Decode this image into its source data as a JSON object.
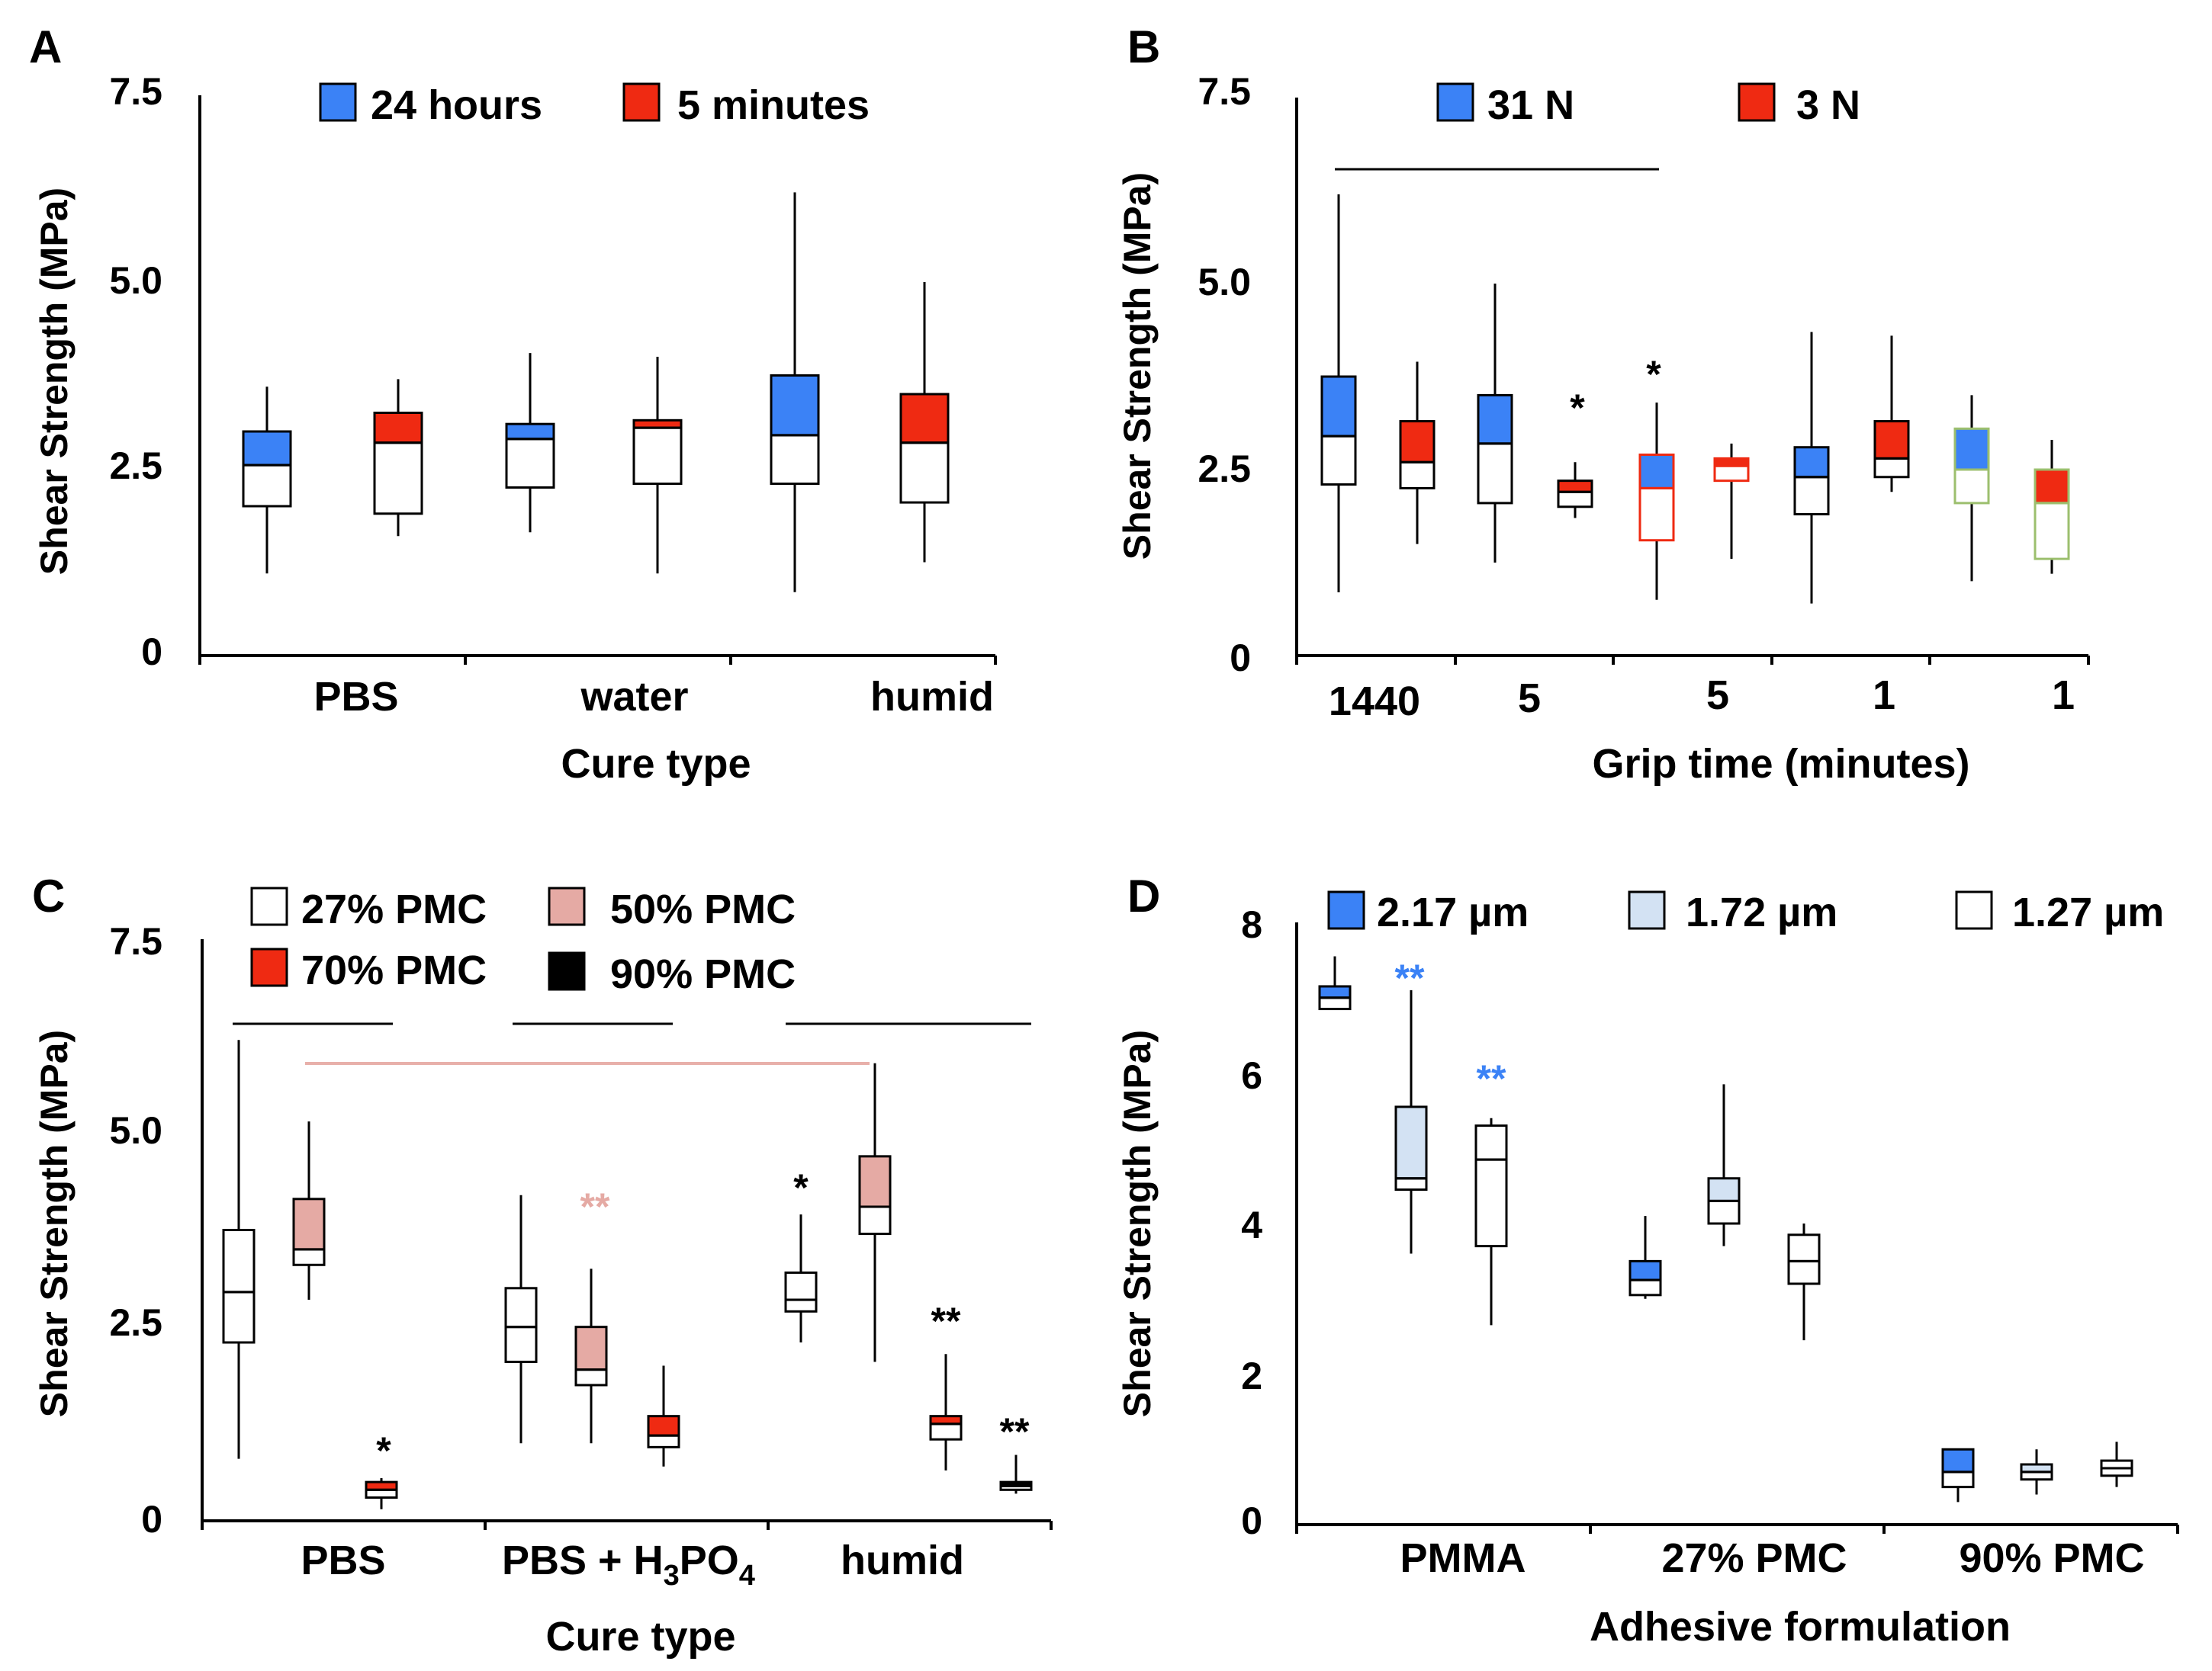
{
  "chart_data": [
    {
      "panel": "A",
      "type": "box",
      "xlabel": "Cure type",
      "ylabel": "Shear Strength (MPa)",
      "ylim": [
        0,
        7.5
      ],
      "yticks": [
        "0",
        "2.5",
        "5.0",
        "7.5"
      ],
      "categories": [
        "PBS",
        "water",
        "humid"
      ],
      "legend": [
        {
          "label": "24 hours",
          "color": "#3b82f6"
        },
        {
          "label": "5 minutes",
          "color": "#ef2a12"
        }
      ],
      "boxes": [
        {
          "category": "PBS",
          "series": "24 hours",
          "min": 1.1,
          "q1": 2.0,
          "median": 2.55,
          "q3": 3.0,
          "max": 3.6
        },
        {
          "category": "PBS",
          "series": "5 minutes",
          "min": 1.6,
          "q1": 1.9,
          "median": 2.85,
          "q3": 3.25,
          "max": 3.7
        },
        {
          "category": "water",
          "series": "24 hours",
          "min": 1.65,
          "q1": 2.25,
          "median": 2.9,
          "q3": 3.1,
          "max": 4.05
        },
        {
          "category": "water",
          "series": "5 minutes",
          "min": 1.1,
          "q1": 2.3,
          "median": 3.05,
          "q3": 3.15,
          "max": 4.0
        },
        {
          "category": "humid",
          "series": "24 hours",
          "min": 0.85,
          "q1": 2.3,
          "median": 2.95,
          "q3": 3.75,
          "max": 6.2
        },
        {
          "category": "humid",
          "series": "5 minutes",
          "min": 1.25,
          "q1": 2.05,
          "median": 2.85,
          "q3": 3.5,
          "max": 5.0
        }
      ]
    },
    {
      "panel": "B",
      "type": "box",
      "xlabel": "Grip time (minutes)",
      "ylabel": "Shear Strength (MPa)",
      "ylim": [
        0,
        7.5
      ],
      "yticks": [
        "0",
        "2.5",
        "5.0",
        "7.5"
      ],
      "tick_labels": [
        "1440",
        "5",
        "5",
        "1",
        "1"
      ],
      "legend": [
        {
          "label": "31 N",
          "color": "#3b82f6"
        },
        {
          "label": "3 N",
          "color": "#ef2a12"
        }
      ],
      "annotations": [
        "*",
        "*"
      ],
      "boxes": [
        {
          "series": "31 N",
          "min": 0.85,
          "q1": 2.3,
          "median": 2.95,
          "q3": 3.75,
          "max": 6.2
        },
        {
          "series": "3 N",
          "min": 1.5,
          "q1": 2.25,
          "median": 2.6,
          "q3": 3.15,
          "max": 3.95
        },
        {
          "series": "31 N",
          "min": 1.25,
          "q1": 2.05,
          "median": 2.85,
          "q3": 3.5,
          "max": 5.0
        },
        {
          "series": "3 N",
          "min": 1.85,
          "q1": 2.0,
          "median": 2.2,
          "q3": 2.35,
          "max": 2.6
        },
        {
          "series": "31 N",
          "min": 0.75,
          "q1": 1.55,
          "median": 2.25,
          "q3": 2.7,
          "max": 3.4
        },
        {
          "series": "3 N",
          "min": 1.3,
          "q1": 2.35,
          "median": 2.55,
          "q3": 2.65,
          "max": 2.85
        },
        {
          "series": "31 N",
          "min": 0.7,
          "q1": 1.9,
          "median": 2.4,
          "q3": 2.8,
          "max": 4.35
        },
        {
          "series": "3 N",
          "min": 2.2,
          "q1": 2.4,
          "median": 2.65,
          "q3": 3.15,
          "max": 4.3
        },
        {
          "series": "31 N",
          "min": 1.0,
          "q1": 2.05,
          "median": 2.5,
          "q3": 3.05,
          "max": 3.5
        },
        {
          "series": "3 N",
          "min": 1.1,
          "q1": 1.3,
          "median": 2.05,
          "q3": 2.5,
          "max": 2.9
        }
      ]
    },
    {
      "panel": "C",
      "type": "box",
      "xlabel": "Cure type",
      "ylabel": "Shear Strength (MPa)",
      "ylim": [
        0,
        7.5
      ],
      "yticks": [
        "0",
        "2.5",
        "5.0",
        "7.5"
      ],
      "categories": [
        "PBS",
        "PBS + H",
        "humid"
      ],
      "category_suffix": {
        "sub1": "3",
        "mid": "PO",
        "sub2": "4"
      },
      "legend": [
        {
          "label": "27% PMC",
          "color": "#ffffff"
        },
        {
          "label": "50% PMC",
          "color": "#e5aaa4"
        },
        {
          "label": "70% PMC",
          "color": "#ef2a12"
        },
        {
          "label": "90% PMC",
          "color": "#000000"
        }
      ],
      "annotations": [
        "*",
        "**",
        "*",
        "**",
        "**"
      ],
      "boxes": [
        {
          "category": "PBS",
          "series": "27% PMC",
          "min": 0.8,
          "q1": 2.3,
          "median": 2.95,
          "q3": 3.75,
          "max": 6.2
        },
        {
          "category": "PBS",
          "series": "50% PMC",
          "min": 2.85,
          "q1": 3.3,
          "median": 3.5,
          "q3": 4.15,
          "max": 5.15
        },
        {
          "category": "PBS",
          "series": "70% PMC",
          "min": 0.15,
          "q1": 0.3,
          "median": 0.4,
          "q3": 0.5,
          "max": 0.55
        },
        {
          "category": "PBS + H3PO4",
          "series": "27% PMC",
          "min": 1.0,
          "q1": 2.05,
          "median": 2.5,
          "q3": 3.0,
          "max": 4.2
        },
        {
          "category": "PBS + H3PO4",
          "series": "50% PMC",
          "min": 1.0,
          "q1": 1.75,
          "median": 1.95,
          "q3": 2.5,
          "max": 3.25
        },
        {
          "category": "PBS + H3PO4",
          "series": "70% PMC",
          "min": 0.7,
          "q1": 0.95,
          "median": 1.1,
          "q3": 1.35,
          "max": 2.0
        },
        {
          "category": "humid",
          "series": "27% PMC",
          "min": 2.3,
          "q1": 2.7,
          "median": 2.85,
          "q3": 3.2,
          "max": 3.95
        },
        {
          "category": "humid",
          "series": "50% PMC",
          "min": 2.05,
          "q1": 3.7,
          "median": 4.05,
          "q3": 4.7,
          "max": 5.9
        },
        {
          "category": "humid",
          "series": "70% PMC",
          "min": 0.65,
          "q1": 1.05,
          "median": 1.25,
          "q3": 1.35,
          "max": 2.15
        },
        {
          "category": "humid",
          "series": "90% PMC",
          "min": 0.35,
          "q1": 0.4,
          "median": 0.45,
          "q3": 0.5,
          "max": 0.85
        }
      ]
    },
    {
      "panel": "D",
      "type": "box",
      "xlabel": "Adhesive formulation",
      "ylabel": "Shear Strength (MPa)",
      "ylim": [
        0,
        8
      ],
      "yticks": [
        "0",
        "2",
        "4",
        "6",
        "8"
      ],
      "categories": [
        "PMMA",
        "27% PMC",
        "90% PMC"
      ],
      "legend": [
        {
          "label": "2.17 µm",
          "color": "#3b82f6"
        },
        {
          "label": "1.72 µm",
          "color": "#d3e2f3"
        },
        {
          "label": "1.27 µm",
          "color": "#ffffff"
        }
      ],
      "annotations": [
        "**",
        "**"
      ],
      "boxes": [
        {
          "category": "PMMA",
          "series": "2.17 µm",
          "min": 6.85,
          "q1": 6.85,
          "median": 7.0,
          "q3": 7.15,
          "max": 7.55
        },
        {
          "category": "PMMA",
          "series": "1.72 µm",
          "min": 3.6,
          "q1": 4.45,
          "median": 4.6,
          "q3": 5.55,
          "max": 7.1
        },
        {
          "category": "PMMA",
          "series": "1.27 µm",
          "min": 2.65,
          "q1": 3.7,
          "median": 4.85,
          "q3": 5.3,
          "max": 5.4
        },
        {
          "category": "27% PMC",
          "series": "2.17 µm",
          "min": 3.0,
          "q1": 3.05,
          "median": 3.25,
          "q3": 3.5,
          "max": 4.1
        },
        {
          "category": "27% PMC",
          "series": "1.72 µm",
          "min": 3.7,
          "q1": 4.0,
          "median": 4.3,
          "q3": 4.6,
          "max": 5.85
        },
        {
          "category": "27% PMC",
          "series": "1.27 µm",
          "min": 2.45,
          "q1": 3.2,
          "median": 3.5,
          "q3": 3.85,
          "max": 4.0
        },
        {
          "category": "90% PMC",
          "series": "2.17 µm",
          "min": 0.3,
          "q1": 0.5,
          "median": 0.7,
          "q3": 1.0,
          "max": 1.0
        },
        {
          "category": "90% PMC",
          "series": "1.72 µm",
          "min": 0.4,
          "q1": 0.6,
          "median": 0.7,
          "q3": 0.8,
          "max": 1.0
        },
        {
          "category": "90% PMC",
          "series": "1.27 µm",
          "min": 0.5,
          "q1": 0.65,
          "median": 0.75,
          "q3": 0.85,
          "max": 1.1
        }
      ]
    }
  ]
}
